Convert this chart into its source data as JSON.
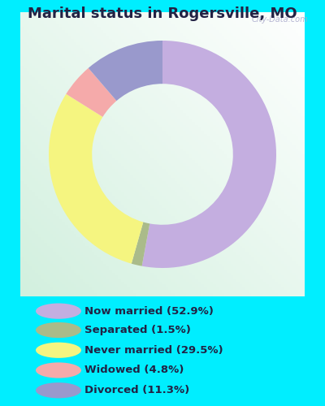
{
  "title": "Marital status in Rogersville, MO",
  "slices": [
    52.9,
    1.5,
    29.5,
    4.8,
    11.3
  ],
  "colors": [
    "#C4AEE0",
    "#AABB8A",
    "#F5F580",
    "#F5AAAA",
    "#9999CC"
  ],
  "labels": [
    "Now married (52.9%)",
    "Separated (1.5%)",
    "Never married (29.5%)",
    "Widowed (4.8%)",
    "Divorced (11.3%)"
  ],
  "legend_colors": [
    "#C4AEE0",
    "#AABB8A",
    "#F5F580",
    "#F5AAAA",
    "#9999CC"
  ],
  "outer_background": "#00EEFF",
  "chart_bg_color": "#e8f5ee",
  "title_fontsize": 13,
  "watermark": "City-Data.com",
  "donut_width": 0.38,
  "start_angle": 90
}
